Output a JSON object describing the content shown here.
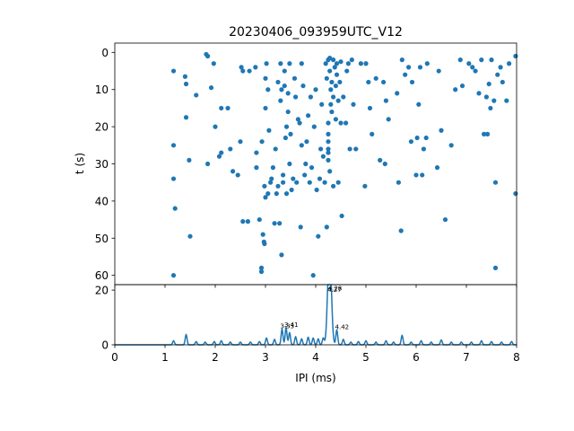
{
  "chart_data": [
    {
      "type": "scatter",
      "title": "20230406_093959UTC_V12",
      "xlabel": "",
      "ylabel": "t (s)",
      "xlim": [
        0,
        8
      ],
      "ylim": [
        62.5,
        -2.5
      ],
      "y_inverted": true,
      "yticks": [
        "0",
        "10",
        "20",
        "30",
        "40",
        "50",
        "60"
      ],
      "color": "#1f77b4",
      "points": [
        [
          1.17,
          5
        ],
        [
          1.17,
          25
        ],
        [
          1.17,
          34
        ],
        [
          1.17,
          60
        ],
        [
          1.2,
          42
        ],
        [
          1.4,
          6.5
        ],
        [
          1.42,
          8.5
        ],
        [
          1.42,
          17.5
        ],
        [
          1.48,
          29
        ],
        [
          1.5,
          49.5
        ],
        [
          1.62,
          11.5
        ],
        [
          1.82,
          0.5
        ],
        [
          1.85,
          1
        ],
        [
          1.85,
          30
        ],
        [
          1.92,
          9.5
        ],
        [
          1.97,
          3
        ],
        [
          2.0,
          20
        ],
        [
          2.08,
          28
        ],
        [
          2.12,
          15
        ],
        [
          2.12,
          27
        ],
        [
          2.25,
          15
        ],
        [
          2.3,
          26
        ],
        [
          2.35,
          32
        ],
        [
          2.45,
          33
        ],
        [
          2.5,
          24
        ],
        [
          2.52,
          4
        ],
        [
          2.55,
          5
        ],
        [
          2.55,
          45.5
        ],
        [
          2.65,
          45.5
        ],
        [
          2.68,
          5
        ],
        [
          2.8,
          4
        ],
        [
          2.82,
          27
        ],
        [
          2.82,
          31
        ],
        [
          2.88,
          45
        ],
        [
          2.92,
          58
        ],
        [
          2.92,
          59
        ],
        [
          2.93,
          24
        ],
        [
          2.95,
          49
        ],
        [
          2.97,
          51
        ],
        [
          2.98,
          51.5
        ],
        [
          2.98,
          36
        ],
        [
          3.0,
          39
        ],
        [
          3.0,
          15
        ],
        [
          3.0,
          7
        ],
        [
          3.02,
          3
        ],
        [
          3.05,
          10
        ],
        [
          3.05,
          38
        ],
        [
          3.07,
          21
        ],
        [
          3.1,
          35
        ],
        [
          3.12,
          34
        ],
        [
          3.15,
          31
        ],
        [
          3.18,
          46
        ],
        [
          3.2,
          26
        ],
        [
          3.22,
          38
        ],
        [
          3.25,
          36
        ],
        [
          3.25,
          8
        ],
        [
          3.28,
          46
        ],
        [
          3.3,
          3
        ],
        [
          3.3,
          13
        ],
        [
          3.32,
          10
        ],
        [
          3.32,
          54.5
        ],
        [
          3.35,
          33
        ],
        [
          3.35,
          35
        ],
        [
          3.38,
          5
        ],
        [
          3.38,
          9
        ],
        [
          3.4,
          23
        ],
        [
          3.42,
          20
        ],
        [
          3.42,
          38
        ],
        [
          3.45,
          11
        ],
        [
          3.45,
          16
        ],
        [
          3.48,
          3
        ],
        [
          3.48,
          30
        ],
        [
          3.5,
          22
        ],
        [
          3.52,
          37
        ],
        [
          3.55,
          34
        ],
        [
          3.58,
          7
        ],
        [
          3.6,
          12
        ],
        [
          3.62,
          35
        ],
        [
          3.65,
          18
        ],
        [
          3.68,
          19
        ],
        [
          3.7,
          47
        ],
        [
          3.72,
          3
        ],
        [
          3.72,
          25
        ],
        [
          3.75,
          9
        ],
        [
          3.78,
          33
        ],
        [
          3.8,
          30
        ],
        [
          3.82,
          24
        ],
        [
          3.85,
          17
        ],
        [
          3.88,
          35
        ],
        [
          3.9,
          12
        ],
        [
          3.92,
          31
        ],
        [
          3.95,
          60
        ],
        [
          3.97,
          20
        ],
        [
          4.0,
          10
        ],
        [
          4.02,
          37
        ],
        [
          4.05,
          49.5
        ],
        [
          4.08,
          34
        ],
        [
          4.1,
          26
        ],
        [
          4.12,
          14
        ],
        [
          4.15,
          28
        ],
        [
          4.18,
          35
        ],
        [
          4.2,
          3
        ],
        [
          4.22,
          7
        ],
        [
          4.22,
          47
        ],
        [
          4.25,
          2
        ],
        [
          4.25,
          19
        ],
        [
          4.25,
          22
        ],
        [
          4.25,
          24
        ],
        [
          4.25,
          26
        ],
        [
          4.25,
          27
        ],
        [
          4.25,
          29
        ],
        [
          4.28,
          1.5
        ],
        [
          4.28,
          5
        ],
        [
          4.28,
          32
        ],
        [
          4.3,
          10
        ],
        [
          4.3,
          14
        ],
        [
          4.32,
          8
        ],
        [
          4.32,
          16
        ],
        [
          4.35,
          2
        ],
        [
          4.35,
          12
        ],
        [
          4.35,
          36
        ],
        [
          4.38,
          4
        ],
        [
          4.4,
          9
        ],
        [
          4.4,
          18
        ],
        [
          4.42,
          3
        ],
        [
          4.42,
          6
        ],
        [
          4.45,
          13
        ],
        [
          4.45,
          35
        ],
        [
          4.48,
          8
        ],
        [
          4.5,
          2.5
        ],
        [
          4.5,
          19
        ],
        [
          4.52,
          44
        ],
        [
          4.55,
          12
        ],
        [
          4.6,
          19
        ],
        [
          4.62,
          5
        ],
        [
          4.65,
          3
        ],
        [
          4.68,
          26
        ],
        [
          4.72,
          2
        ],
        [
          4.75,
          14
        ],
        [
          4.8,
          26
        ],
        [
          4.9,
          3
        ],
        [
          4.98,
          36
        ],
        [
          5.0,
          3
        ],
        [
          5.05,
          8
        ],
        [
          5.08,
          15
        ],
        [
          5.12,
          22
        ],
        [
          5.2,
          7
        ],
        [
          5.28,
          29
        ],
        [
          5.35,
          8
        ],
        [
          5.38,
          30
        ],
        [
          5.4,
          13
        ],
        [
          5.45,
          18
        ],
        [
          5.62,
          11
        ],
        [
          5.65,
          35
        ],
        [
          5.7,
          48
        ],
        [
          5.72,
          2
        ],
        [
          5.78,
          6
        ],
        [
          5.85,
          4
        ],
        [
          5.9,
          24
        ],
        [
          5.92,
          8
        ],
        [
          6.0,
          33
        ],
        [
          6.02,
          23
        ],
        [
          6.05,
          14
        ],
        [
          6.08,
          4
        ],
        [
          6.12,
          33
        ],
        [
          6.15,
          26
        ],
        [
          6.2,
          23
        ],
        [
          6.22,
          3
        ],
        [
          6.42,
          31
        ],
        [
          6.45,
          5
        ],
        [
          6.5,
          21
        ],
        [
          6.58,
          45
        ],
        [
          6.7,
          25
        ],
        [
          6.78,
          10
        ],
        [
          6.88,
          2
        ],
        [
          6.92,
          9
        ],
        [
          7.05,
          3
        ],
        [
          7.12,
          4
        ],
        [
          7.18,
          5
        ],
        [
          7.25,
          11
        ],
        [
          7.3,
          2
        ],
        [
          7.35,
          22
        ],
        [
          7.4,
          12
        ],
        [
          7.42,
          22
        ],
        [
          7.45,
          8.5
        ],
        [
          7.48,
          15
        ],
        [
          7.5,
          2
        ],
        [
          7.55,
          13
        ],
        [
          7.58,
          35
        ],
        [
          7.58,
          58
        ],
        [
          7.62,
          6
        ],
        [
          7.68,
          4
        ],
        [
          7.72,
          8
        ],
        [
          7.8,
          13
        ],
        [
          7.85,
          3
        ],
        [
          7.98,
          1
        ],
        [
          7.98,
          38
        ]
      ]
    },
    {
      "type": "line",
      "xlabel": "IPI (ms)",
      "ylabel": "",
      "xlim": [
        0,
        8
      ],
      "ylim": [
        0,
        22
      ],
      "xticks": [
        "0",
        "1",
        "2",
        "3",
        "4",
        "5",
        "6",
        "7",
        "8"
      ],
      "yticks": [
        "0",
        "20"
      ],
      "color": "#1f77b4",
      "peaks": [
        [
          1.17,
          1.5
        ],
        [
          1.42,
          3.8
        ],
        [
          1.62,
          1.2
        ],
        [
          1.8,
          1
        ],
        [
          1.98,
          1.2
        ],
        [
          2.12,
          1.5
        ],
        [
          2.3,
          1
        ],
        [
          2.5,
          1
        ],
        [
          2.7,
          1
        ],
        [
          2.88,
          1.2
        ],
        [
          3.02,
          2.5
        ],
        [
          3.18,
          2
        ],
        [
          3.33,
          5.8
        ],
        [
          3.41,
          6.3
        ],
        [
          3.48,
          4.5
        ],
        [
          3.6,
          3
        ],
        [
          3.72,
          2.2
        ],
        [
          3.85,
          2.8
        ],
        [
          3.95,
          2.5
        ],
        [
          4.05,
          2.2
        ],
        [
          4.15,
          2.5
        ],
        [
          4.27,
          19
        ],
        [
          4.28,
          19.5
        ],
        [
          4.42,
          5.5
        ],
        [
          4.55,
          2
        ],
        [
          4.7,
          1
        ],
        [
          4.85,
          1.2
        ],
        [
          5.0,
          1.5
        ],
        [
          5.2,
          1
        ],
        [
          5.4,
          1.5
        ],
        [
          5.55,
          1
        ],
        [
          5.72,
          3.5
        ],
        [
          5.9,
          1
        ],
        [
          6.1,
          1.5
        ],
        [
          6.3,
          1
        ],
        [
          6.5,
          1.8
        ],
        [
          6.7,
          1
        ],
        [
          6.9,
          1
        ],
        [
          7.1,
          1
        ],
        [
          7.3,
          1.5
        ],
        [
          7.5,
          1.2
        ],
        [
          7.7,
          1
        ],
        [
          7.9,
          1.2
        ]
      ],
      "annotations": [
        "3.33",
        "3.41",
        "4.27",
        "4.28",
        "4.42"
      ],
      "annotation_points": [
        [
          3.33,
          5.8
        ],
        [
          3.41,
          6.3
        ],
        [
          4.27,
          19
        ],
        [
          4.28,
          19.5
        ],
        [
          4.42,
          5.5
        ]
      ]
    }
  ]
}
